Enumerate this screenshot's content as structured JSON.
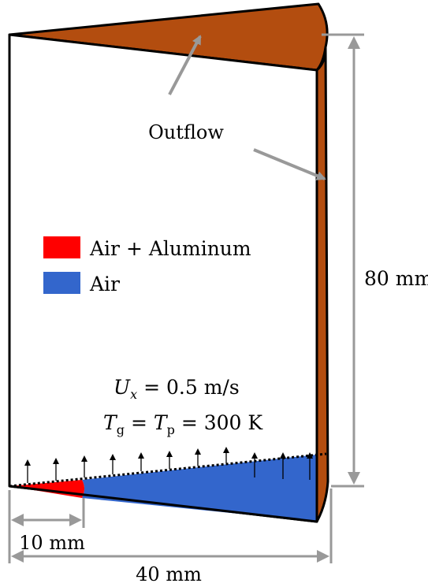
{
  "labels": {
    "outflow": "Outflow",
    "height_dim": "80 mm",
    "width_dim": "40 mm",
    "inlet_dim": "10 mm"
  },
  "legend": [
    {
      "label": "Air + Aluminum",
      "color": "#ff0000"
    },
    {
      "label": "Air",
      "color": "#3366cc"
    }
  ],
  "conditions": {
    "velocity": {
      "symbol": "U",
      "subscript": "x",
      "value": "= 0.5 m/s"
    },
    "temperature": {
      "symbol1": "T",
      "sub1": "g",
      "eq": "=",
      "symbol2": "T",
      "sub2": "p",
      "value": "= 300 K"
    }
  },
  "colors": {
    "outflow": "#b34d0f",
    "air": "#3366cc",
    "air_aluminum": "#ff0000",
    "dimension_line": "#999999"
  }
}
